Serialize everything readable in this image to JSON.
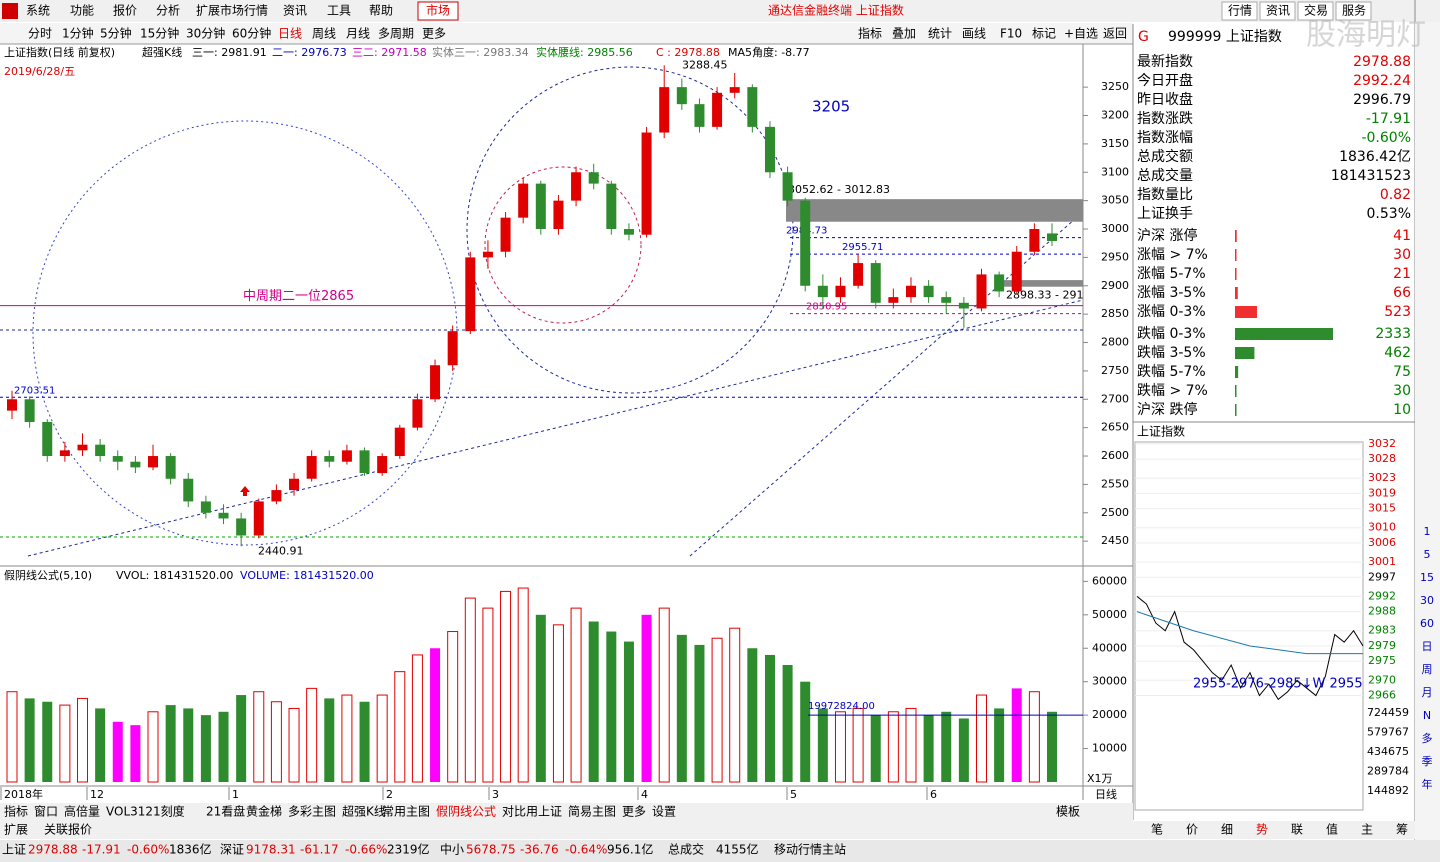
{
  "menu": [
    "系统",
    "功能",
    "报价",
    "分析",
    "扩展市场行情",
    "资讯",
    "工具",
    "帮助"
  ],
  "market_button": "市场",
  "window_title": "通达信金融终端 上证指数",
  "right_menu": [
    "行情",
    "资讯",
    "交易",
    "服务"
  ],
  "periods": [
    "分时",
    "1分钟",
    "5分钟",
    "15分钟",
    "30分钟",
    "60分钟",
    "日线",
    "周线",
    "月线",
    "多周期",
    "更多"
  ],
  "tools": [
    "指标",
    "叠加",
    "统计",
    "画线",
    "F10",
    "标记",
    "+自选",
    "返回"
  ],
  "header": [
    "上证指数(日线 前复权)",
    "超强K线",
    "三一: 2981.91",
    "二一: 2976.73",
    "三二: 2971.58",
    "实体三一: 2983.34",
    "实体腰线: 2985.56",
    "C : 2978.88",
    "MA5角度: -8.77"
  ],
  "date_label": "2019/6/28/五",
  "chart_data": {
    "type": "candlestick",
    "x_labels": [
      "2018年",
      "12",
      "1",
      "2",
      "3",
      "4",
      "5",
      "6"
    ],
    "candles": [
      [
        2680,
        2715,
        2665,
        2700
      ],
      [
        2700,
        2705,
        2650,
        2660
      ],
      [
        2660,
        2665,
        2590,
        2600
      ],
      [
        2600,
        2625,
        2590,
        2610
      ],
      [
        2610,
        2640,
        2600,
        2620
      ],
      [
        2620,
        2630,
        2590,
        2600
      ],
      [
        2600,
        2610,
        2575,
        2590
      ],
      [
        2590,
        2600,
        2570,
        2580
      ],
      [
        2580,
        2620,
        2575,
        2600
      ],
      [
        2600,
        2605,
        2550,
        2560
      ],
      [
        2560,
        2570,
        2510,
        2520
      ],
      [
        2520,
        2530,
        2490,
        2500
      ],
      [
        2500,
        2515,
        2480,
        2490
      ],
      [
        2490,
        2500,
        2440.91,
        2460
      ],
      [
        2460,
        2525,
        2455,
        2520
      ],
      [
        2520,
        2550,
        2515,
        2540
      ],
      [
        2540,
        2570,
        2530,
        2560
      ],
      [
        2560,
        2610,
        2555,
        2600
      ],
      [
        2600,
        2610,
        2580,
        2590
      ],
      [
        2590,
        2620,
        2585,
        2610
      ],
      [
        2610,
        2615,
        2565,
        2570
      ],
      [
        2570,
        2605,
        2565,
        2600
      ],
      [
        2600,
        2655,
        2595,
        2650
      ],
      [
        2650,
        2710,
        2645,
        2700
      ],
      [
        2700,
        2770,
        2695,
        2760
      ],
      [
        2760,
        2830,
        2750,
        2820
      ],
      [
        2820,
        2960,
        2815,
        2950
      ],
      [
        2950,
        2980,
        2930,
        2960
      ],
      [
        2960,
        3030,
        2950,
        3020
      ],
      [
        3020,
        3090,
        3010,
        3080
      ],
      [
        3080,
        3085,
        2990,
        3000
      ],
      [
        3000,
        3060,
        2990,
        3050
      ],
      [
        3050,
        3110,
        3040,
        3100
      ],
      [
        3100,
        3115,
        3070,
        3080
      ],
      [
        3080,
        3085,
        2990,
        3000
      ],
      [
        3000,
        3010,
        2980,
        2990
      ],
      [
        2990,
        3180,
        2985,
        3170
      ],
      [
        3170,
        3288.45,
        3160,
        3250
      ],
      [
        3250,
        3265,
        3210,
        3220
      ],
      [
        3220,
        3230,
        3170,
        3180
      ],
      [
        3180,
        3250,
        3175,
        3240
      ],
      [
        3240,
        3275,
        3230,
        3250
      ],
      [
        3250,
        3255,
        3170,
        3180
      ],
      [
        3180,
        3190,
        3090,
        3100
      ],
      [
        3100,
        3110,
        3040,
        3050
      ],
      [
        3050,
        3055,
        2890,
        2900
      ],
      [
        2900,
        2920,
        2860,
        2880
      ],
      [
        2880,
        2915,
        2870,
        2900
      ],
      [
        2900,
        2955.71,
        2895,
        2940
      ],
      [
        2940,
        2945,
        2860,
        2870
      ],
      [
        2870,
        2895,
        2860,
        2880
      ],
      [
        2880,
        2915,
        2870,
        2900
      ],
      [
        2900,
        2910,
        2870,
        2880
      ],
      [
        2880,
        2890,
        2850.95,
        2870
      ],
      [
        2870,
        2880,
        2826,
        2860
      ],
      [
        2860,
        2930,
        2855,
        2920
      ],
      [
        2920,
        2925,
        2880,
        2890
      ],
      [
        2890,
        2970,
        2885,
        2960
      ],
      [
        2960,
        3010,
        2955,
        3000
      ],
      [
        2992.24,
        3010,
        2970,
        2978.88
      ]
    ],
    "up_color": "#e00000",
    "down_color": "#2e8b2e",
    "ylim": [
      2408,
      3326
    ],
    "yticks": [
      2450,
      2500,
      2550,
      2600,
      2650,
      2700,
      2750,
      2800,
      2850,
      2900,
      2950,
      3000,
      3050,
      3100,
      3150,
      3200,
      3250
    ],
    "annotations": [
      {
        "label": "3205"
      },
      {
        "label": "3288.45",
        "value": 3288.45
      },
      {
        "label": "2440.91",
        "value": 2440.91
      }
    ],
    "levels": [
      {
        "label": "中周期二一位2865",
        "value": 2865,
        "color": "#d0008a"
      },
      {
        "label": "2703.51",
        "value": 2703.51,
        "color": "#0000c0"
      },
      {
        "label": "2984.73",
        "value": 2984.73,
        "color": "#0000c0"
      },
      {
        "label": "2955.71",
        "value": 2955.71,
        "color": "#0000c0"
      },
      {
        "label": "2850.95",
        "value": 2850.95,
        "color": "#d0008a"
      }
    ],
    "zones": [
      {
        "label": "3052.62 - 3012.83",
        "values": [
          3052.62,
          3012.83
        ]
      },
      {
        "label": "2898.33 - 291",
        "values": [
          2910,
          2898.33
        ]
      }
    ]
  },
  "volume_chart": {
    "type": "bar",
    "header": [
      "假阴线公式(5,10)",
      "VVOL: 181431520.00",
      "VOLUME: 181431520.00"
    ],
    "values": [
      27000,
      25000,
      24000,
      23000,
      25000,
      22000,
      18000,
      17000,
      21000,
      23000,
      22000,
      20000,
      21000,
      26000,
      27000,
      24000,
      22000,
      28000,
      25000,
      26000,
      24000,
      26000,
      33000,
      38000,
      40000,
      45000,
      55000,
      52000,
      57000,
      58000,
      50000,
      47000,
      52000,
      48000,
      45000,
      42000,
      50000,
      52000,
      44000,
      41000,
      43000,
      46000,
      40000,
      38000,
      35000,
      30000,
      22000,
      21000,
      22000,
      20000,
      21000,
      22000,
      20000,
      21000,
      19000,
      26000,
      22000,
      28000,
      27000,
      21000
    ],
    "highlight": [
      6,
      7,
      24,
      36,
      57
    ],
    "highlight_color": "#ff00ff",
    "ylim": [
      0,
      64000
    ],
    "yticks": [
      10000,
      20000,
      30000,
      40000,
      50000,
      60000
    ],
    "level": {
      "label": "19972824.00",
      "value": 20000
    },
    "unit": "X1万",
    "period": "日线"
  },
  "quote": {
    "code_prefix": "G",
    "title": "999999 上证指数",
    "rows": [
      [
        "最新指数",
        "2978.88",
        "r"
      ],
      [
        "今日开盘",
        "2992.24",
        "r"
      ],
      [
        "昨日收盘",
        "2996.79",
        ""
      ],
      [
        "指数涨跌",
        "-17.91",
        "g"
      ],
      [
        "指数涨幅",
        "-0.60%",
        "g"
      ],
      [
        "总成交额",
        "1836.42亿",
        ""
      ],
      [
        "总成交量",
        "181431523",
        ""
      ],
      [
        "指数量比",
        "0.82",
        "r"
      ],
      [
        "上证换手",
        "0.53%",
        ""
      ]
    ]
  },
  "distribution": {
    "up": [
      [
        "沪深 涨停",
        41
      ],
      [
        "涨幅 > 7%",
        30
      ],
      [
        "涨幅 5-7%",
        21
      ],
      [
        "涨幅 3-5%",
        66
      ],
      [
        "涨幅 0-3%",
        523
      ]
    ],
    "down": [
      [
        "跌幅 0-3%",
        2333
      ],
      [
        "跌幅 3-5%",
        462
      ],
      [
        "跌幅 5-7%",
        75
      ],
      [
        "跌幅 > 7%",
        30
      ],
      [
        "沪深 跌停",
        10
      ]
    ]
  },
  "mini_chart": {
    "type": "line",
    "title": "上证指数",
    "label": "2955-2976-2985↓W 2955",
    "values": [
      2992,
      2990,
      2985,
      2983,
      2988,
      2980,
      2978,
      2975,
      2972,
      2970,
      2974,
      2968,
      2972,
      2966,
      2969,
      2965,
      2967,
      2970,
      2968,
      2966,
      2971,
      2982,
      2980,
      2983,
      2979
    ],
    "avg": [
      2988,
      2983,
      2979,
      2977,
      2977
    ],
    "ylim": [
      2963,
      3033
    ],
    "yticks": [
      3032,
      3028,
      3023,
      3019,
      3015,
      3010,
      3006,
      3001,
      2997,
      2992,
      2988,
      2983,
      2979,
      2975,
      2970,
      2966
    ],
    "base": 2997,
    "volume_ticks": [
      724459,
      579767,
      434675,
      289784,
      144892
    ]
  },
  "side_periods": [
    "1",
    "5",
    "15",
    "30",
    "60",
    "日",
    "周",
    "月",
    "N",
    "多",
    "季",
    "年"
  ],
  "tabs": [
    "指标",
    "窗口",
    "高倍量",
    "VOL3121刻度",
    "21看盘",
    "黄金梯",
    "多彩主图",
    "超强K线",
    "常用主图",
    "假阴线公式",
    "对比用上证",
    "简易主图",
    "更多",
    "设置"
  ],
  "tab_template": "模板",
  "tabs2": [
    "扩展",
    "关联报价"
  ],
  "right_tabs": [
    "笔",
    "价",
    "细",
    "势",
    "联",
    "值",
    "主",
    "筹"
  ],
  "status": [
    [
      "上证",
      "2978.88",
      "-17.91",
      "-0.60%",
      "1836亿"
    ],
    [
      "深证",
      "9178.31",
      "-61.17",
      "-0.66%",
      "2319亿"
    ],
    [
      "中小",
      "5678.75",
      "-36.76",
      "-0.64%",
      "956.1亿"
    ]
  ],
  "status_total": [
    "总成交",
    "4155亿"
  ],
  "status_server": "移动行情主站"
}
